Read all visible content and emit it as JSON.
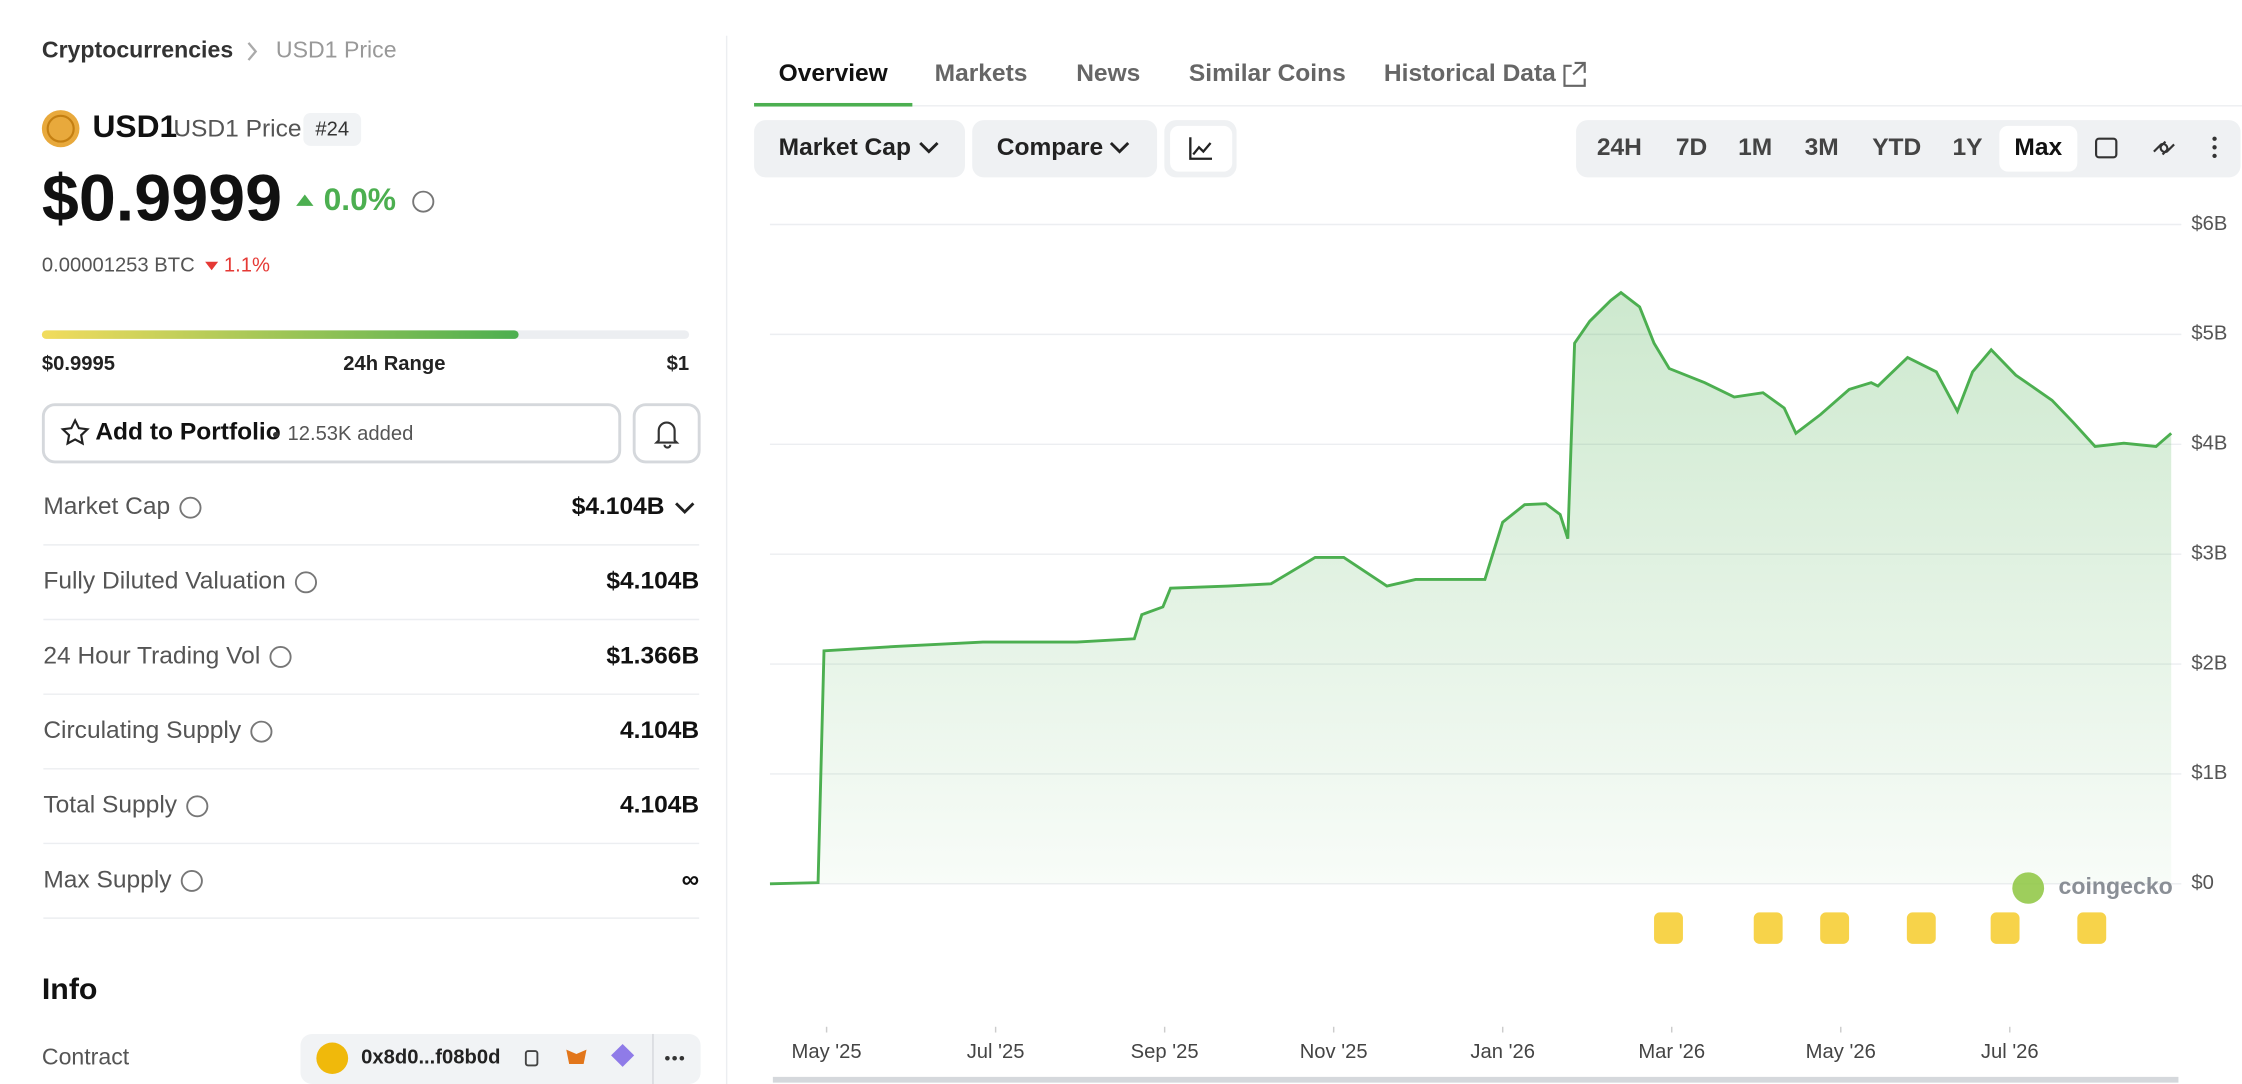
{
  "breadcrumb": [
    "Cryptocurrencies",
    "USD1 Price"
  ],
  "coin": {
    "symbol": "USD1",
    "name": "USD1 Price",
    "rank": "#24",
    "price": "$0.9999",
    "change": "0.0%",
    "btc_price": "0.00001253 BTC",
    "btc_change": "1.1%"
  },
  "range": {
    "low": "$0.9995",
    "label": "24h Range",
    "high": "$1"
  },
  "portfolio": {
    "button": "Add to Portfolio",
    "added": "12.53K added"
  },
  "stats": [
    {
      "label": "Market Cap",
      "value": "$4.104B"
    },
    {
      "label": "Fully Diluted Valuation",
      "value": "$4.104B"
    },
    {
      "label": "24 Hour Trading Vol",
      "value": "$1.366B"
    },
    {
      "label": "Circulating Supply",
      "value": "4.104B"
    },
    {
      "label": "Total Supply",
      "value": "4.104B"
    },
    {
      "label": "Max Supply",
      "value": "∞"
    }
  ],
  "info": {
    "title": "Info",
    "contract_label": "Contract",
    "contract": "0x8d0...f08b0d"
  },
  "tabs": [
    "Overview",
    "Markets",
    "News",
    "Similar Coins",
    "Historical Data"
  ],
  "toolbar": {
    "metric": "Market Cap",
    "compare": "Compare",
    "ranges": [
      "24H",
      "7D",
      "1M",
      "3M",
      "YTD",
      "1Y",
      "Max"
    ],
    "active_range": 6
  },
  "watermark": "coingecko",
  "chart_data": {
    "type": "area",
    "color": "#4caf50",
    "x": [
      -0.67,
      -0.1,
      -0.03,
      0.82,
      1.85,
      2.96,
      3.64,
      3.73,
      3.98,
      4.07,
      4.75,
      5.26,
      5.78,
      6.12,
      6.63,
      6.97,
      7.79,
      8.0,
      8.26,
      8.51,
      8.68,
      8.77,
      8.85,
      9.03,
      9.28,
      9.4,
      9.62,
      9.79,
      9.97,
      10.39,
      10.74,
      11.08,
      11.33,
      11.47,
      11.76,
      12.1,
      12.36,
      12.44,
      12.79,
      13.13,
      13.38,
      13.56,
      13.78,
      14.07,
      14.5,
      14.75,
      15.01,
      15.35,
      15.73,
      15.91
    ],
    "values": [
      0,
      0.01,
      2.12,
      2.16,
      2.2,
      2.2,
      2.23,
      2.45,
      2.52,
      2.69,
      2.71,
      2.73,
      2.97,
      2.97,
      2.71,
      2.77,
      2.77,
      3.29,
      3.45,
      3.46,
      3.36,
      3.14,
      4.92,
      5.12,
      5.31,
      5.38,
      5.25,
      4.92,
      4.69,
      4.56,
      4.43,
      4.47,
      4.33,
      4.1,
      4.27,
      4.5,
      4.56,
      4.53,
      4.79,
      4.66,
      4.3,
      4.66,
      4.86,
      4.63,
      4.4,
      4.2,
      3.98,
      4.01,
      3.98,
      4.1
    ],
    "xlim": [
      -0.67,
      15.91
    ],
    "xticks": [
      {
        "value": 0,
        "label": "May '25"
      },
      {
        "value": 2,
        "label": "Jul '25"
      },
      {
        "value": 4,
        "label": "Sep '25"
      },
      {
        "value": 6,
        "label": "Nov '25"
      },
      {
        "value": 8,
        "label": "Jan '26"
      },
      {
        "value": 10,
        "label": "Mar '26"
      },
      {
        "value": 12,
        "label": "May '26"
      },
      {
        "value": 14,
        "label": "Jul '26"
      }
    ],
    "ylim": [
      0,
      6
    ],
    "yticks": [
      {
        "value": 0,
        "label": "$0"
      },
      {
        "value": 1,
        "label": "$1B"
      },
      {
        "value": 2,
        "label": "$2B"
      },
      {
        "value": 3,
        "label": "$3B"
      },
      {
        "value": 4,
        "label": "$4B"
      },
      {
        "value": 5,
        "label": "$5B"
      },
      {
        "value": 6,
        "label": "$6B"
      }
    ],
    "grid": true
  }
}
